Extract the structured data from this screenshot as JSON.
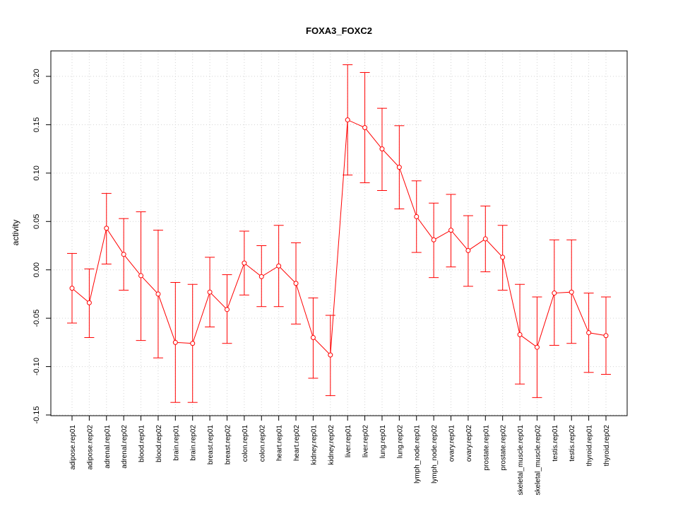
{
  "chart_data": {
    "type": "line",
    "title": "FOXA3_FOXC2",
    "xlabel": "",
    "ylabel": "activity",
    "ylim": [
      -0.15,
      0.225
    ],
    "yticks": [
      -0.15,
      -0.1,
      -0.05,
      0.0,
      0.05,
      0.1,
      0.15,
      0.2
    ],
    "ytick_labels": [
      "-0.15",
      "-0.10",
      "-0.05",
      "0.00",
      "0.05",
      "0.10",
      "0.15",
      "0.20"
    ],
    "grid": true,
    "color": "#ff0000",
    "categories": [
      "adipose.rep01",
      "adipose.rep02",
      "adrenal.rep01",
      "adrenal.rep02",
      "blood.rep01",
      "blood.rep02",
      "brain.rep01",
      "brain.rep02",
      "breast.rep01",
      "breast.rep02",
      "colon.rep01",
      "colon.rep02",
      "heart.rep01",
      "heart.rep02",
      "kidney.rep01",
      "kidney.rep02",
      "liver.rep01",
      "liver.rep02",
      "lung.rep01",
      "lung.rep02",
      "lymph_node.rep01",
      "lymph_node.rep02",
      "ovary.rep01",
      "ovary.rep02",
      "prostate.rep01",
      "prostate.rep02",
      "skeletal_muscle.rep01",
      "skeletal_muscle.rep02",
      "testis.rep01",
      "testis.rep02",
      "thyroid.rep01",
      "thyroid.rep02"
    ],
    "values": [
      -0.019,
      -0.034,
      0.043,
      0.016,
      -0.006,
      -0.025,
      -0.075,
      -0.076,
      -0.023,
      -0.041,
      0.007,
      -0.007,
      0.004,
      -0.014,
      -0.07,
      -0.088,
      0.155,
      0.147,
      0.125,
      0.106,
      0.055,
      0.031,
      0.041,
      0.02,
      0.032,
      0.013,
      -0.067,
      -0.08,
      -0.024,
      -0.023,
      -0.065,
      -0.068
    ],
    "upper": [
      0.017,
      0.001,
      0.079,
      0.053,
      0.06,
      0.041,
      -0.013,
      -0.015,
      0.013,
      -0.005,
      0.04,
      0.025,
      0.046,
      0.028,
      -0.029,
      -0.047,
      0.212,
      0.204,
      0.167,
      0.149,
      0.092,
      0.069,
      0.078,
      0.056,
      0.066,
      0.046,
      -0.015,
      -0.028,
      0.031,
      0.031,
      -0.024,
      -0.028
    ],
    "lower": [
      -0.055,
      -0.07,
      0.006,
      -0.021,
      -0.073,
      -0.091,
      -0.137,
      -0.137,
      -0.059,
      -0.076,
      -0.026,
      -0.038,
      -0.038,
      -0.056,
      -0.112,
      -0.13,
      0.098,
      0.09,
      0.082,
      0.063,
      0.018,
      -0.008,
      0.003,
      -0.017,
      -0.002,
      -0.021,
      -0.118,
      -0.132,
      -0.078,
      -0.076,
      -0.106,
      -0.108
    ]
  }
}
